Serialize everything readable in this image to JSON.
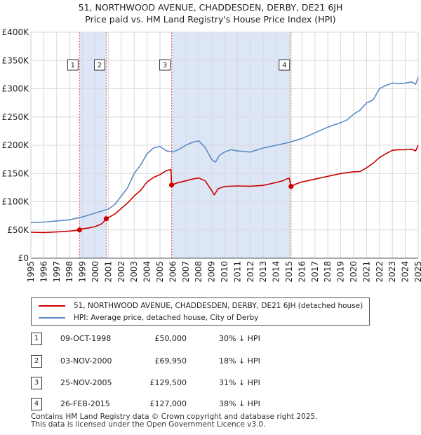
{
  "title": {
    "line1": "51, NORTHWOOD AVENUE, CHADDESDEN, DERBY, DE21 6JH",
    "line2": "Price paid vs. HM Land Registry's House Price Index (HPI)"
  },
  "colors": {
    "price_line": "#cc0000",
    "hpi_line": "#5b8ac6",
    "shade": "#dde6f7",
    "grid": "#d9d9d9",
    "vline": "#e06060"
  },
  "legend": {
    "price_label": "51, NORTHWOOD AVENUE, CHADDESDEN, DERBY, DE21 6JH (detached house)",
    "hpi_label": "HPI: Average price, detached house, City of Derby"
  },
  "sales": [
    {
      "num": "1",
      "date": "09-OCT-1998",
      "price": "£50,000",
      "diff": "30% ↓ HPI"
    },
    {
      "num": "2",
      "date": "03-NOV-2000",
      "price": "£69,950",
      "diff": "18% ↓ HPI"
    },
    {
      "num": "3",
      "date": "25-NOV-2005",
      "price": "£129,500",
      "diff": "31% ↓ HPI"
    },
    {
      "num": "4",
      "date": "26-FEB-2015",
      "price": "£127,000",
      "diff": "38% ↓ HPI"
    }
  ],
  "footer": {
    "line1": "Contains HM Land Registry data © Crown copyright and database right 2025.",
    "line2": "This data is licensed under the Open Government Licence v3.0."
  },
  "chart_data": {
    "type": "line",
    "title": "Price paid vs. HM Land Registry's House Price Index (HPI)",
    "xlim": [
      1995,
      2025
    ],
    "ylim": [
      0,
      400000
    ],
    "x_ticks": [
      "1995",
      "1996",
      "1997",
      "1998",
      "1999",
      "2000",
      "2001",
      "2002",
      "2003",
      "2004",
      "2005",
      "2006",
      "2007",
      "2008",
      "2009",
      "2010",
      "2011",
      "2012",
      "2013",
      "2014",
      "2015",
      "2016",
      "2017",
      "2018",
      "2019",
      "2020",
      "2021",
      "2022",
      "2023",
      "2024",
      "2025"
    ],
    "y_ticks": [
      {
        "value": 0,
        "label": "£0"
      },
      {
        "value": 50000,
        "label": "£50K"
      },
      {
        "value": 100000,
        "label": "£100K"
      },
      {
        "value": 150000,
        "label": "£150K"
      },
      {
        "value": 200000,
        "label": "£200K"
      },
      {
        "value": 250000,
        "label": "£250K"
      },
      {
        "value": 300000,
        "label": "£300K"
      },
      {
        "value": 350000,
        "label": "£350K"
      },
      {
        "value": 400000,
        "label": "£400K"
      }
    ],
    "shaded_ranges": [
      [
        1998.77,
        2000.84
      ],
      [
        2005.9,
        2015.15
      ]
    ],
    "sale_markers": [
      {
        "label": "1",
        "x": 1998.77,
        "y": 50000
      },
      {
        "label": "2",
        "x": 2000.84,
        "y": 69950
      },
      {
        "label": "3",
        "x": 2005.9,
        "y": 129500
      },
      {
        "label": "4",
        "x": 2015.15,
        "y": 127000
      }
    ],
    "series": [
      {
        "name": "51, NORTHWOOD AVENUE, CHADDESDEN, DERBY, DE21 6JH (detached house)",
        "x": [
          1995,
          1996,
          1997,
          1998,
          1998.77,
          1999,
          1999.5,
          2000,
          2000.5,
          2000.84,
          2001.5,
          2002,
          2002.5,
          2003,
          2003.5,
          2004,
          2004.5,
          2005,
          2005.5,
          2005.85,
          2005.9,
          2006.3,
          2007,
          2007.5,
          2008,
          2008.5,
          2009,
          2009.2,
          2009.5,
          2010,
          2011,
          2012,
          2013,
          2014,
          2014.5,
          2015.0,
          2015.15,
          2015.5,
          2016,
          2017,
          2018,
          2019,
          2020,
          2020.5,
          2021,
          2021.5,
          2022,
          2022.5,
          2023,
          2023.5,
          2024,
          2024.5,
          2024.8,
          2025
        ],
        "y": [
          46000,
          45500,
          46500,
          48000,
          50000,
          52000,
          53500,
          56000,
          61000,
          69950,
          78000,
          88000,
          98000,
          110000,
          120000,
          135000,
          143000,
          148000,
          155000,
          157000,
          129500,
          133000,
          137000,
          140000,
          142000,
          137000,
          120000,
          112000,
          123000,
          127000,
          128000,
          127500,
          129000,
          134000,
          137000,
          142000,
          127000,
          131000,
          135000,
          140000,
          145000,
          150000,
          153000,
          153500,
          160000,
          168000,
          178000,
          185000,
          191000,
          192000,
          192000,
          193000,
          190000,
          200000
        ]
      },
      {
        "name": "HPI: Average price, detached house, City of Derby",
        "x": [
          1995,
          1996,
          1997,
          1998,
          1999,
          2000,
          2001,
          2001.5,
          2002,
          2002.5,
          2003,
          2003.5,
          2004,
          2004.5,
          2005,
          2005.5,
          2006,
          2006.5,
          2007,
          2007.5,
          2008,
          2008.5,
          2009,
          2009.3,
          2009.6,
          2010,
          2010.5,
          2011,
          2012,
          2013,
          2014,
          2015,
          2016,
          2017,
          2018,
          2019,
          2019.5,
          2020,
          2020.5,
          2021,
          2021.5,
          2022,
          2022.5,
          2023,
          2023.5,
          2024,
          2024.5,
          2024.8,
          2025
        ],
        "y": [
          63000,
          64000,
          66000,
          68000,
          73000,
          80000,
          87000,
          95000,
          110000,
          125000,
          150000,
          165000,
          185000,
          195000,
          198000,
          190000,
          188000,
          193000,
          200000,
          205000,
          208000,
          196000,
          175000,
          170000,
          182000,
          188000,
          192000,
          190000,
          188000,
          195000,
          200000,
          205000,
          212000,
          222000,
          232000,
          240000,
          245000,
          255000,
          262000,
          275000,
          280000,
          300000,
          306000,
          310000,
          309000,
          310000,
          312000,
          308000,
          320000
        ]
      }
    ]
  }
}
